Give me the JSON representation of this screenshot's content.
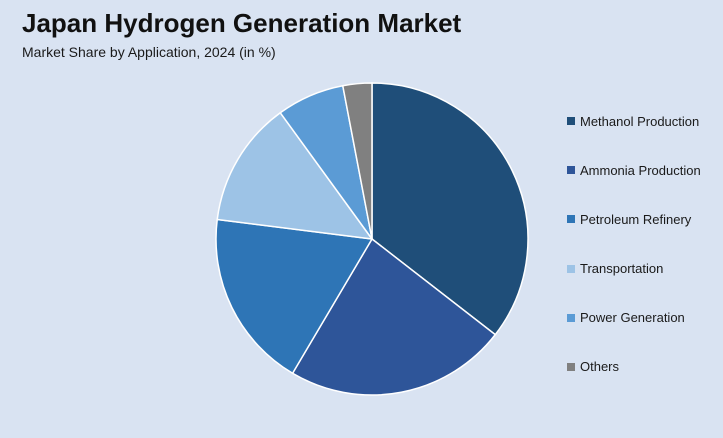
{
  "header": {
    "title": "Japan Hydrogen Generation Market",
    "subtitle": "Market Share by Application, 2024 (in %)"
  },
  "chart_data": {
    "type": "pie",
    "title": "Japan Hydrogen Generation Market",
    "subtitle": "Market Share by Application, 2024 (in %)",
    "categories": [
      "Methanol Production",
      "Ammonia Production",
      "Petroleum Refinery",
      "Transportation",
      "Power Generation",
      "Others"
    ],
    "values": [
      35.5,
      23.0,
      18.5,
      13.0,
      7.0,
      3.0
    ],
    "colors": [
      "#1f4e79",
      "#2e5599",
      "#2e75b6",
      "#9dc3e6",
      "#5b9bd5",
      "#808080"
    ],
    "legend": "right",
    "start": "top, clockwise"
  }
}
